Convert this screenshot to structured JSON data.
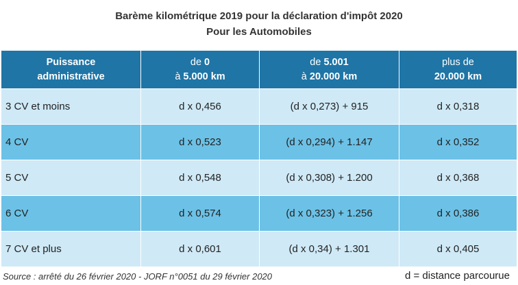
{
  "title": {
    "line1": "Barème kilométrique 2019 pour la déclaration d'impôt 2020",
    "line2": "Pour les Automobiles"
  },
  "header": {
    "col1": {
      "line1": "Puissance",
      "line2": "administrative"
    },
    "col2": {
      "line1_prefix": "de ",
      "line1_bold": "0",
      "line2_prefix": "à ",
      "line2_bold": "5.000 km"
    },
    "col3": {
      "line1_prefix": "de ",
      "line1_bold": "5.001",
      "line2_prefix": "à ",
      "line2_bold": "20.000 km"
    },
    "col4": {
      "line1": "plus de",
      "line2_bold": "20.000 km"
    }
  },
  "rows": [
    {
      "puissance": "3 CV et moins",
      "tranche1": "d x 0,456",
      "tranche2": "(d x 0,273) + 915",
      "tranche3": "d x 0,318"
    },
    {
      "puissance": "4 CV",
      "tranche1": "d x 0,523",
      "tranche2": "(d x 0,294) + 1.147",
      "tranche3": "d x 0,352"
    },
    {
      "puissance": "5 CV",
      "tranche1": "d x 0,548",
      "tranche2": "(d x 0,308) + 1.200",
      "tranche3": "d x 0,368"
    },
    {
      "puissance": "6 CV",
      "tranche1": "d x 0,574",
      "tranche2": "(d x 0,323) + 1.256",
      "tranche3": "d x 0,386"
    },
    {
      "puissance": "7 CV et plus",
      "tranche1": "d x 0,601",
      "tranche2": "(d x 0,34) + 1.301",
      "tranche3": "d x 0,405"
    }
  ],
  "footer": {
    "source": "Source : arrêté du 26 février 2020 - JORF n°0051 du 29 février 2020",
    "legend": "d = distance parcourue"
  },
  "colors": {
    "header_bg": "#1f75a6",
    "row_light": "#cfe9f6",
    "row_dark": "#6cc1e6"
  }
}
